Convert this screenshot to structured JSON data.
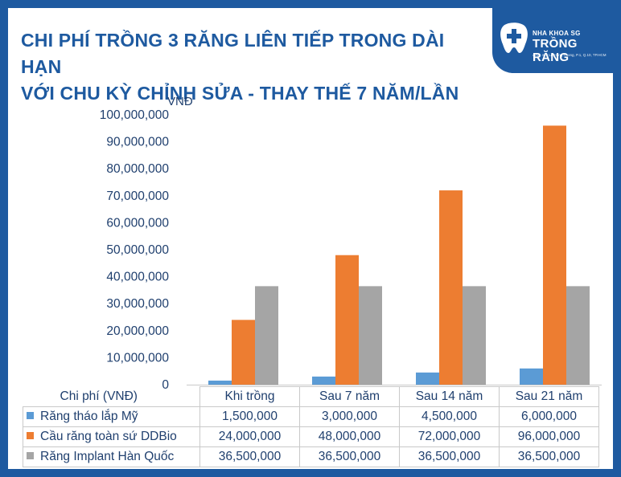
{
  "title": {
    "line1": "CHI PHÍ TRỒNG 3 RĂNG LIÊN TIẾP TRONG DÀI HẠN",
    "line2": "VỚI CHU KỲ CHỈNH SỬA - THAY THẾ 7 NĂM/LẦN"
  },
  "logo": {
    "icon": "tooth-cross-icon",
    "small": "NHA KHOA SG",
    "big": "TRỒNG RĂNG",
    "address": "470 - 472 Lê Hồng Phong, P.1, Q.10, TP.HCM"
  },
  "colors": {
    "frame": "#1e5aa0",
    "blue": "#5b9bd5",
    "orange": "#ed7d31",
    "gray": "#a5a5a5"
  },
  "chart_data": {
    "type": "bar",
    "ylabel": "VNĐ",
    "ylim": [
      0,
      100000000
    ],
    "ytick_step": 10000000,
    "ytick_labels": [
      "0",
      "10,000,000",
      "20,000,000",
      "30,000,000",
      "40,000,000",
      "50,000,000",
      "60,000,000",
      "70,000,000",
      "80,000,000",
      "90,000,000",
      "100,000,000"
    ],
    "grid": false,
    "legend": "data table below chart",
    "table_header": "Chi phí (VNĐ)",
    "categories": [
      "Khi trồng",
      "Sau 7 năm",
      "Sau 14 năm",
      "Sau 21 năm"
    ],
    "series": [
      {
        "name": "Răng tháo lắp Mỹ",
        "color": "#5b9bd5",
        "values": [
          1500000,
          3000000,
          4500000,
          6000000
        ],
        "labels": [
          "1,500,000",
          "3,000,000",
          "4,500,000",
          "6,000,000"
        ]
      },
      {
        "name": "Cầu răng toàn sứ DDBio",
        "color": "#ed7d31",
        "values": [
          24000000,
          48000000,
          72000000,
          96000000
        ],
        "labels": [
          "24,000,000",
          "48,000,000",
          "72,000,000",
          "96,000,000"
        ]
      },
      {
        "name": "Răng Implant Hàn Quốc",
        "color": "#a5a5a5",
        "values": [
          36500000,
          36500000,
          36500000,
          36500000
        ],
        "labels": [
          "36,500,000",
          "36,500,000",
          "36,500,000",
          "36,500,000"
        ]
      }
    ]
  }
}
